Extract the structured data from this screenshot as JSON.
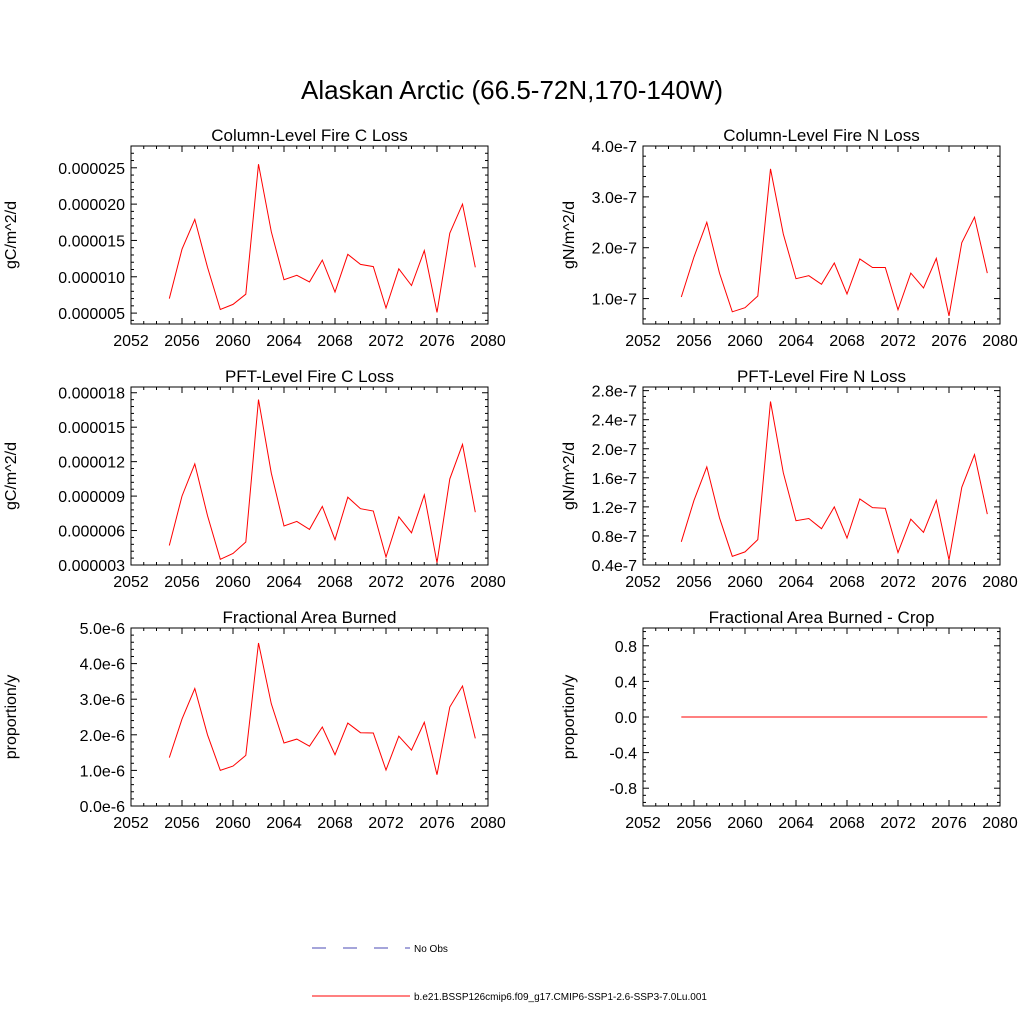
{
  "title": "Alaskan Arctic (66.5-72N,170-140W)",
  "colors": {
    "series": "#ff0000",
    "obs": "#4b4bb4",
    "axis": "#000000"
  },
  "legend": {
    "items": [
      {
        "label": "No Obs",
        "style": "dashed",
        "color": "#4b4bb4"
      },
      {
        "label": "b.e21.BSSP126cmip6.f09_g17.CMIP6-SSP1-2.6-SSP3-7.0Lu.001",
        "style": "solid",
        "color": "#ff0000"
      }
    ]
  },
  "chart_data": [
    {
      "type": "line",
      "title": "Column-Level Fire C Loss",
      "ylabel": "gC/m^2/d",
      "xlim": [
        2052,
        2080
      ],
      "ylim": [
        3.5e-06,
        2.8e-05
      ],
      "xticks": [
        "2052",
        "2056",
        "2060",
        "2064",
        "2068",
        "2072",
        "2076",
        "2080"
      ],
      "yticks": [
        {
          "v": 5e-06,
          "label": "0.000005"
        },
        {
          "v": 1e-05,
          "label": "0.000010"
        },
        {
          "v": 1.5e-05,
          "label": "0.000015"
        },
        {
          "v": 2e-05,
          "label": "0.000020"
        },
        {
          "v": 2.5e-05,
          "label": "0.000025"
        }
      ],
      "x": [
        2055,
        2056,
        2057,
        2058,
        2059,
        2060,
        2061,
        2062,
        2063,
        2064,
        2065,
        2066,
        2067,
        2068,
        2069,
        2070,
        2071,
        2072,
        2073,
        2074,
        2075,
        2076,
        2077,
        2078,
        2079
      ],
      "values": [
        7e-06,
        1.38e-05,
        1.79e-05,
        1.13e-05,
        5.5e-06,
        6.2e-06,
        7.6e-06,
        2.55e-05,
        1.62e-05,
        9.6e-06,
        1.02e-05,
        9.3e-06,
        1.23e-05,
        7.9e-06,
        1.31e-05,
        1.17e-05,
        1.14e-05,
        5.7e-06,
        1.11e-05,
        8.8e-06,
        1.36e-05,
        5.1e-06,
        1.6e-05,
        2e-05,
        1.13e-05
      ]
    },
    {
      "type": "line",
      "title": "Column-Level Fire N Loss",
      "ylabel": "gN/m^2/d",
      "xlim": [
        2052,
        2080
      ],
      "ylim": [
        5e-08,
        4e-07
      ],
      "xticks": [
        "2052",
        "2056",
        "2060",
        "2064",
        "2068",
        "2072",
        "2076",
        "2080"
      ],
      "yticks": [
        {
          "v": 1e-07,
          "label": "1.0e-7"
        },
        {
          "v": 2e-07,
          "label": "2.0e-7"
        },
        {
          "v": 3e-07,
          "label": "3.0e-7"
        },
        {
          "v": 4e-07,
          "label": "4.0e-7"
        }
      ],
      "x": [
        2055,
        2056,
        2057,
        2058,
        2059,
        2060,
        2061,
        2062,
        2063,
        2064,
        2065,
        2066,
        2067,
        2068,
        2069,
        2070,
        2071,
        2072,
        2073,
        2074,
        2075,
        2076,
        2077,
        2078,
        2079
      ],
      "values": [
        1.03e-07,
        1.82e-07,
        2.5e-07,
        1.5e-07,
        7.4e-08,
        8.2e-08,
        1.05e-07,
        3.55e-07,
        2.27e-07,
        1.39e-07,
        1.45e-07,
        1.28e-07,
        1.7e-07,
        1.09e-07,
        1.78e-07,
        1.61e-07,
        1.61e-07,
        7.8e-08,
        1.5e-07,
        1.21e-07,
        1.79e-07,
        6.6e-08,
        2.1e-07,
        2.6e-07,
        1.5e-07
      ]
    },
    {
      "type": "line",
      "title": "PFT-Level Fire C Loss",
      "ylabel": "gC/m^2/d",
      "xlim": [
        2052,
        2080
      ],
      "ylim": [
        3e-06,
        1.85e-05
      ],
      "xticks": [
        "2052",
        "2056",
        "2060",
        "2064",
        "2068",
        "2072",
        "2076",
        "2080"
      ],
      "yticks": [
        {
          "v": 3e-06,
          "label": "0.000003"
        },
        {
          "v": 6e-06,
          "label": "0.000006"
        },
        {
          "v": 9e-06,
          "label": "0.000009"
        },
        {
          "v": 1.2e-05,
          "label": "0.000012"
        },
        {
          "v": 1.5e-05,
          "label": "0.000015"
        },
        {
          "v": 1.8e-05,
          "label": "0.000018"
        }
      ],
      "x": [
        2055,
        2056,
        2057,
        2058,
        2059,
        2060,
        2061,
        2062,
        2063,
        2064,
        2065,
        2066,
        2067,
        2068,
        2069,
        2070,
        2071,
        2072,
        2073,
        2074,
        2075,
        2076,
        2077,
        2078,
        2079
      ],
      "values": [
        4.7e-06,
        9e-06,
        1.18e-05,
        7.3e-06,
        3.5e-06,
        4e-06,
        5e-06,
        1.74e-05,
        1.1e-05,
        6.4e-06,
        6.8e-06,
        6.1e-06,
        8.1e-06,
        5.2e-06,
        8.9e-06,
        7.9e-06,
        7.7e-06,
        3.7e-06,
        7.2e-06,
        5.8e-06,
        9.1e-06,
        3.2e-06,
        1.05e-05,
        1.35e-05,
        7.6e-06
      ]
    },
    {
      "type": "line",
      "title": "PFT-Level Fire N Loss",
      "ylabel": "gN/m^2/d",
      "xlim": [
        2052,
        2080
      ],
      "ylim": [
        4e-08,
        2.85e-07
      ],
      "xticks": [
        "2052",
        "2056",
        "2060",
        "2064",
        "2068",
        "2072",
        "2076",
        "2080"
      ],
      "yticks": [
        {
          "v": 4e-08,
          "label": "0.4e-7"
        },
        {
          "v": 8e-08,
          "label": "0.8e-7"
        },
        {
          "v": 1.2e-07,
          "label": "1.2e-7"
        },
        {
          "v": 1.6e-07,
          "label": "1.6e-7"
        },
        {
          "v": 2e-07,
          "label": "2.0e-7"
        },
        {
          "v": 2.4e-07,
          "label": "2.4e-7"
        },
        {
          "v": 2.8e-07,
          "label": "2.8e-7"
        }
      ],
      "x": [
        2055,
        2056,
        2057,
        2058,
        2059,
        2060,
        2061,
        2062,
        2063,
        2064,
        2065,
        2066,
        2067,
        2068,
        2069,
        2070,
        2071,
        2072,
        2073,
        2074,
        2075,
        2076,
        2077,
        2078,
        2079
      ],
      "values": [
        7.2e-08,
        1.29e-07,
        1.75e-07,
        1.05e-07,
        5.2e-08,
        5.8e-08,
        7.5e-08,
        2.65e-07,
        1.67e-07,
        1.01e-07,
        1.04e-07,
        9e-08,
        1.2e-07,
        7.7e-08,
        1.31e-07,
        1.19e-07,
        1.18e-07,
        5.7e-08,
        1.03e-07,
        8.5e-08,
        1.29e-07,
        4.7e-08,
        1.47e-07,
        1.92e-07,
        1.1e-07
      ]
    },
    {
      "type": "line",
      "title": "Fractional Area Burned",
      "ylabel": "proportion/y",
      "xlim": [
        2052,
        2080
      ],
      "ylim": [
        0.0,
        5e-06
      ],
      "xticks": [
        "2052",
        "2056",
        "2060",
        "2064",
        "2068",
        "2072",
        "2076",
        "2080"
      ],
      "yticks": [
        {
          "v": 0.0,
          "label": "0.0e-6"
        },
        {
          "v": 1e-06,
          "label": "1.0e-6"
        },
        {
          "v": 2e-06,
          "label": "2.0e-6"
        },
        {
          "v": 3e-06,
          "label": "3.0e-6"
        },
        {
          "v": 4e-06,
          "label": "4.0e-6"
        },
        {
          "v": 5e-06,
          "label": "5.0e-6"
        }
      ],
      "x": [
        2055,
        2056,
        2057,
        2058,
        2059,
        2060,
        2061,
        2062,
        2063,
        2064,
        2065,
        2066,
        2067,
        2068,
        2069,
        2070,
        2071,
        2072,
        2073,
        2074,
        2075,
        2076,
        2077,
        2078,
        2079
      ],
      "values": [
        1.36e-06,
        2.44e-06,
        3.3e-06,
        2e-06,
        1e-06,
        1.12e-06,
        1.42e-06,
        4.58e-06,
        2.87e-06,
        1.77e-06,
        1.88e-06,
        1.68e-06,
        2.22e-06,
        1.44e-06,
        2.33e-06,
        2.06e-06,
        2.05e-06,
        1.01e-06,
        1.96e-06,
        1.57e-06,
        2.35e-06,
        8.8e-07,
        2.78e-06,
        3.37e-06,
        1.9e-06
      ]
    },
    {
      "type": "line",
      "title": "Fractional Area Burned - Crop",
      "ylabel": "proportion/y",
      "xlim": [
        2052,
        2080
      ],
      "ylim": [
        -1.0,
        1.0
      ],
      "xticks": [
        "2052",
        "2056",
        "2060",
        "2064",
        "2068",
        "2072",
        "2076",
        "2080"
      ],
      "yticks": [
        {
          "v": -0.8,
          "label": "-0.8"
        },
        {
          "v": -0.4,
          "label": "-0.4"
        },
        {
          "v": 0.0,
          "label": "0.0"
        },
        {
          "v": 0.4,
          "label": "0.4"
        },
        {
          "v": 0.8,
          "label": "0.8"
        }
      ],
      "x": [
        2055,
        2056,
        2057,
        2058,
        2059,
        2060,
        2061,
        2062,
        2063,
        2064,
        2065,
        2066,
        2067,
        2068,
        2069,
        2070,
        2071,
        2072,
        2073,
        2074,
        2075,
        2076,
        2077,
        2078,
        2079
      ],
      "values": [
        0,
        0,
        0,
        0,
        0,
        0,
        0,
        0,
        0,
        0,
        0,
        0,
        0,
        0,
        0,
        0,
        0,
        0,
        0,
        0,
        0,
        0,
        0,
        0,
        0
      ]
    }
  ]
}
